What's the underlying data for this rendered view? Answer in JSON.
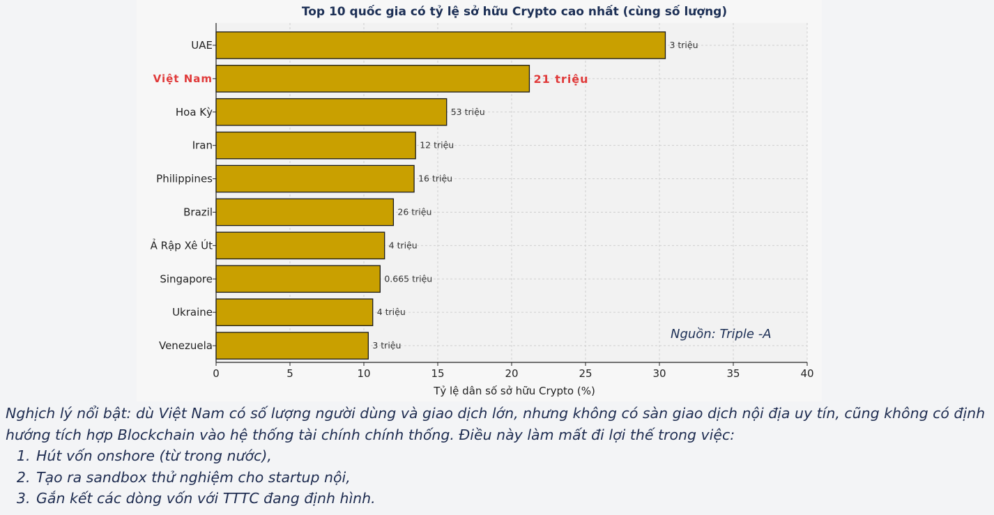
{
  "chart_data": {
    "type": "bar",
    "orientation": "horizontal",
    "title": "Top 10 quốc gia có tỷ lệ sở hữu Crypto cao nhất (cùng số lượng)",
    "xlabel": "Tỷ lệ dân số sở hữu Crypto (%)",
    "ylabel": "",
    "xlim": [
      0,
      40
    ],
    "xticks": [
      "0",
      "5",
      "10",
      "15",
      "20",
      "25",
      "30",
      "35",
      "40"
    ],
    "grid": true,
    "bar_color": "#c9a000",
    "highlight_color": "#e03a3a",
    "categories": [
      "UAE",
      "Việt Nam",
      "Hoa Kỳ",
      "Iran",
      "Philippines",
      "Brazil",
      "Ả Rập Xê Út",
      "Singapore",
      "Ukraine",
      "Venezuela"
    ],
    "values": [
      30.4,
      21.2,
      15.6,
      13.5,
      13.4,
      12.0,
      11.4,
      11.1,
      10.6,
      10.3
    ],
    "data_labels": [
      "3 triệu",
      "21 triệu",
      "53 triệu",
      "12 triệu",
      "16 triệu",
      "26 triệu",
      "4 triệu",
      "0.665 triệu",
      "4 triệu",
      "3 triệu"
    ],
    "highlight": "Việt Nam",
    "annotation": "Nguồn: Triple -A"
  },
  "caption": {
    "paragraph": "Nghịch lý nổi bật: dù Việt Nam có số lượng người dùng và giao dịch lớn, nhưng không có sàn giao dịch nội địa uy tín, cũng không có định hướng tích hợp Blockchain vào hệ thống tài chính chính thống. Điều này làm mất đi lợi thế trong việc:",
    "items": [
      "Hút vốn onshore (từ trong nước),",
      "Tạo ra sandbox thử nghiệm cho startup nội,",
      "Gắn kết các dòng vốn với TTTC đang định hình."
    ]
  }
}
